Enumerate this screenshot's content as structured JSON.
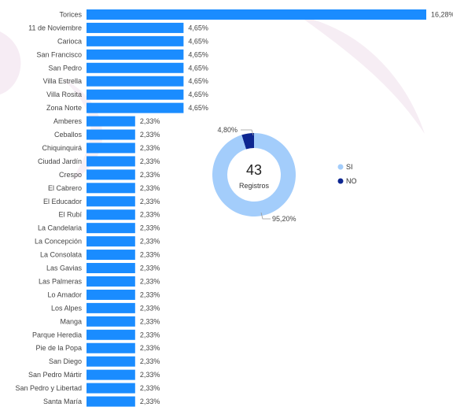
{
  "chart_data": [
    {
      "type": "bar",
      "orientation": "horizontal",
      "categories": [
        "Torices",
        "11 de Noviembre",
        "Carioca",
        "San Francisco",
        "San Pedro",
        "Villa Estrella",
        "Villa Rosita",
        "Zona Norte",
        "Amberes",
        "Ceballos",
        "Chiquinquirá",
        "Ciudad Jardín",
        "Crespo",
        "El Cabrero",
        "El Educador",
        "El Rubí",
        "La Candelaria",
        "La Concepción",
        "La Consolata",
        "Las Gavias",
        "Las Palmeras",
        "Lo Amador",
        "Los Alpes",
        "Manga",
        "Parque Heredia",
        "Pie de la Popa",
        "San Diego",
        "San Pedro Mártir",
        "San Pedro y Libertad",
        "Santa María"
      ],
      "values": [
        16.28,
        4.65,
        4.65,
        4.65,
        4.65,
        4.65,
        4.65,
        4.65,
        2.33,
        2.33,
        2.33,
        2.33,
        2.33,
        2.33,
        2.33,
        2.33,
        2.33,
        2.33,
        2.33,
        2.33,
        2.33,
        2.33,
        2.33,
        2.33,
        2.33,
        2.33,
        2.33,
        2.33,
        2.33,
        2.33
      ],
      "value_labels": [
        "16,28%",
        "4,65%",
        "4,65%",
        "4,65%",
        "4,65%",
        "4,65%",
        "4,65%",
        "4,65%",
        "2,33%",
        "2,33%",
        "2,33%",
        "2,33%",
        "2,33%",
        "2,33%",
        "2,33%",
        "2,33%",
        "2,33%",
        "2,33%",
        "2,33%",
        "2,33%",
        "2,33%",
        "2,33%",
        "2,33%",
        "2,33%",
        "2,33%",
        "2,33%",
        "2,33%",
        "2,33%",
        "2,33%",
        "2,33%"
      ],
      "bar_color": "#1a8cff"
    },
    {
      "type": "pie",
      "style": "donut",
      "categories": [
        "SI",
        "NO"
      ],
      "values": [
        95.2,
        4.8
      ],
      "value_labels": [
        "95,20%",
        "4,80%"
      ],
      "colors": [
        "#a3cdfb",
        "#0d2691"
      ],
      "center_value": "43",
      "center_label": "Registros",
      "legend": {
        "position": "right",
        "items": [
          "SI",
          "NO"
        ]
      }
    }
  ],
  "theme": {
    "decor_color": "#f3e7f1"
  }
}
